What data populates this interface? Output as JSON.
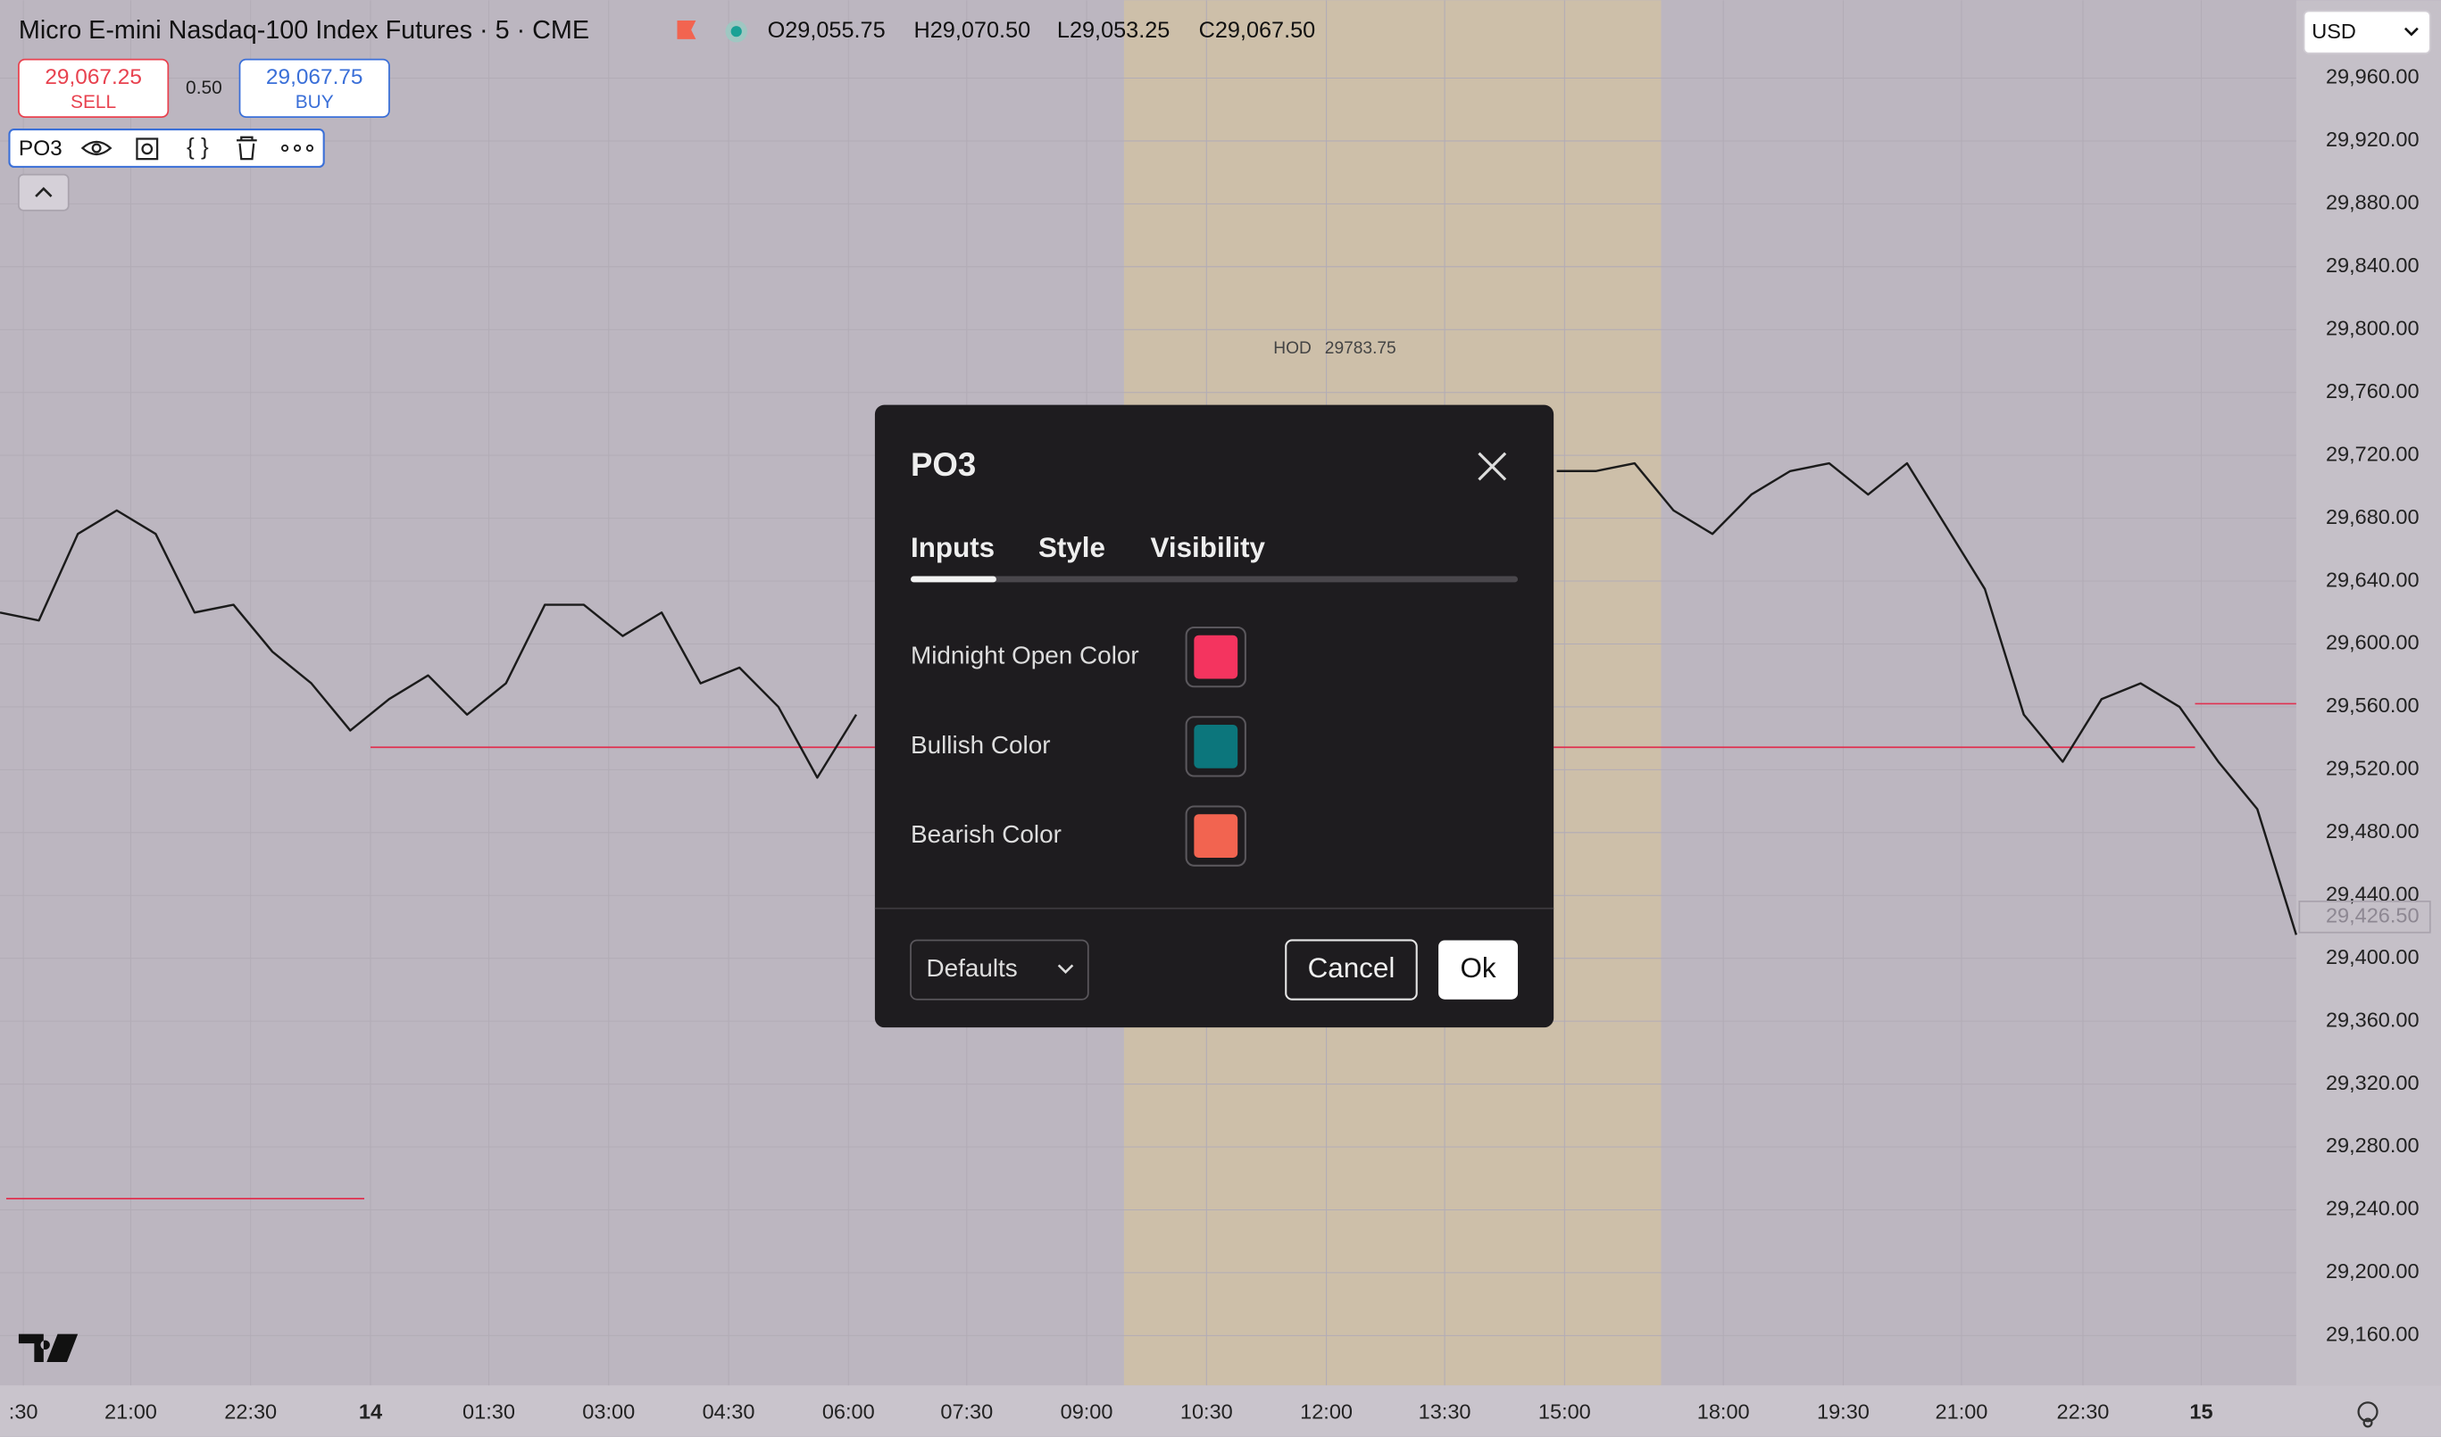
{
  "header": {
    "symbol_title": "Micro E-mini Nasdaq-100 Index Futures · 5 · CME",
    "ohlc": [
      "O29,055.75",
      "H29,070.50",
      "L29,053.25",
      "C29,067.50"
    ],
    "currency": "USD"
  },
  "trade": {
    "sell_price": "29,067.25",
    "sell_label": "SELL",
    "spread": "0.50",
    "buy_price": "29,067.75",
    "buy_label": "BUY"
  },
  "indicator": {
    "name": "PO3"
  },
  "chart": {
    "price_axis": [
      {
        "value": 29960,
        "label": "29,960.00"
      },
      {
        "value": 29920,
        "label": "29,920.00"
      },
      {
        "value": 29880,
        "label": "29,880.00"
      },
      {
        "value": 29840,
        "label": "29,840.00"
      },
      {
        "value": 29800,
        "label": "29,800.00"
      },
      {
        "value": 29760,
        "label": "29,760.00"
      },
      {
        "value": 29720,
        "label": "29,720.00"
      },
      {
        "value": 29680,
        "label": "29,680.00"
      },
      {
        "value": 29640,
        "label": "29,640.00"
      },
      {
        "value": 29600,
        "label": "29,600.00"
      },
      {
        "value": 29560,
        "label": "29,560.00"
      },
      {
        "value": 29520,
        "label": "29,520.00"
      },
      {
        "value": 29480,
        "label": "29,480.00"
      },
      {
        "value": 29440,
        "label": "29,440.00"
      },
      {
        "value": 29400,
        "label": "29,400.00"
      },
      {
        "value": 29360,
        "label": "29,360.00"
      },
      {
        "value": 29320,
        "label": "29,320.00"
      },
      {
        "value": 29280,
        "label": "29,280.00"
      },
      {
        "value": 29240,
        "label": "29,240.00"
      },
      {
        "value": 29200,
        "label": "29,200.00"
      },
      {
        "value": 29160,
        "label": "29,160.00"
      }
    ],
    "time_axis": [
      ":30",
      "21:00",
      "22:30",
      "14",
      "01:30",
      "03:00",
      "04:30",
      "06:00",
      "07:30",
      "09:00",
      "10:30",
      "12:00",
      "13:30",
      "15:00",
      "18:00",
      "19:30",
      "21:00",
      "22:30",
      "15"
    ],
    "current_price": "29,426.50",
    "hod": {
      "label": "HOD",
      "value": "29783.75"
    },
    "closes": [
      29620,
      29615,
      29670,
      29685,
      29670,
      29620,
      29625,
      29595,
      29575,
      29545,
      29565,
      29580,
      29555,
      29575,
      29625,
      29625,
      29605,
      29620,
      29575,
      29585,
      29560,
      29515,
      29555,
      null,
      null,
      null,
      null,
      null,
      null,
      null,
      null,
      null,
      null,
      null,
      null,
      null,
      null,
      null,
      null,
      null,
      29710,
      29710,
      29715,
      29685,
      29670,
      29695,
      29710,
      29715,
      29695,
      29715,
      29675,
      29635,
      29555,
      29525,
      29565,
      29575,
      29560,
      29525,
      29495,
      29415
    ]
  },
  "dialog": {
    "title": "PO3",
    "tabs": [
      "Inputs",
      "Style",
      "Visibility"
    ],
    "active_tab": 0,
    "inputs": [
      {
        "label": "Midnight Open Color",
        "color": "#f4345f"
      },
      {
        "label": "Bullish Color",
        "color": "#0c767c"
      },
      {
        "label": "Bearish Color",
        "color": "#f26450"
      }
    ],
    "preset": "Defaults",
    "cancel": "Cancel",
    "ok": "Ok"
  }
}
